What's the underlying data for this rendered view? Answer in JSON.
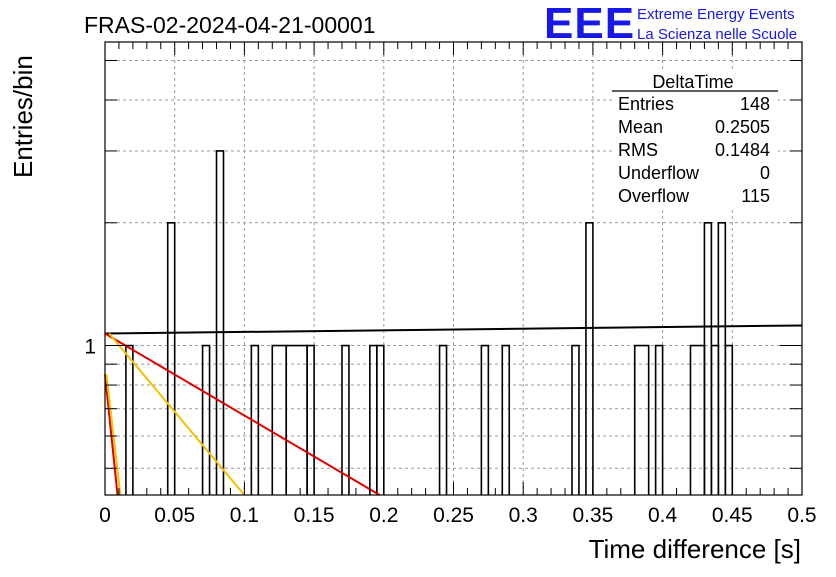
{
  "title": "FRAS-02-2024-04-21-00001",
  "logo": {
    "mark": "EEE",
    "line1": "Extreme Energy Events",
    "line2": "La Scienza nelle Scuole",
    "color": "#1818e8"
  },
  "stats": {
    "name": "DeltaTime",
    "rows": [
      {
        "label": "Entries",
        "value": "148"
      },
      {
        "label": "Mean",
        "value": "0.2505"
      },
      {
        "label": "RMS",
        "value": "0.1484"
      },
      {
        "label": "Underflow",
        "value": "0"
      },
      {
        "label": "Overflow",
        "value": "115"
      }
    ]
  },
  "chart_data": {
    "type": "bar",
    "title": "FRAS-02-2024-04-21-00001",
    "xlabel": "Time difference [s]",
    "ylabel": "Entries/bin",
    "xlim": [
      0,
      0.5
    ],
    "ylim": [
      0.43,
      5.55
    ],
    "ylog": true,
    "grid": true,
    "x_ticks": [
      "0",
      "0.05",
      "0.1",
      "0.15",
      "0.2",
      "0.25",
      "0.3",
      "0.35",
      "0.4",
      "0.45",
      "0.5"
    ],
    "y_ticks": [
      "1"
    ],
    "bin_width": 0.005,
    "bins": [
      {
        "x0": 0.015,
        "x1": 0.02,
        "y": 1
      },
      {
        "x0": 0.045,
        "x1": 0.05,
        "y": 2
      },
      {
        "x0": 0.07,
        "x1": 0.075,
        "y": 1
      },
      {
        "x0": 0.08,
        "x1": 0.085,
        "y": 3
      },
      {
        "x0": 0.105,
        "x1": 0.11,
        "y": 1
      },
      {
        "x0": 0.12,
        "x1": 0.13,
        "y": 1
      },
      {
        "x0": 0.13,
        "x1": 0.145,
        "y": 1
      },
      {
        "x0": 0.145,
        "x1": 0.15,
        "y": 1
      },
      {
        "x0": 0.17,
        "x1": 0.175,
        "y": 1
      },
      {
        "x0": 0.19,
        "x1": 0.195,
        "y": 1
      },
      {
        "x0": 0.195,
        "x1": 0.2,
        "y": 1
      },
      {
        "x0": 0.24,
        "x1": 0.245,
        "y": 1
      },
      {
        "x0": 0.27,
        "x1": 0.275,
        "y": 1
      },
      {
        "x0": 0.285,
        "x1": 0.29,
        "y": 1
      },
      {
        "x0": 0.335,
        "x1": 0.34,
        "y": 1
      },
      {
        "x0": 0.345,
        "x1": 0.35,
        "y": 2
      },
      {
        "x0": 0.38,
        "x1": 0.39,
        "y": 1
      },
      {
        "x0": 0.395,
        "x1": 0.4,
        "y": 1
      },
      {
        "x0": 0.42,
        "x1": 0.43,
        "y": 1
      },
      {
        "x0": 0.43,
        "x1": 0.435,
        "y": 2
      },
      {
        "x0": 0.435,
        "x1": 0.44,
        "y": 1
      },
      {
        "x0": 0.44,
        "x1": 0.445,
        "y": 2
      },
      {
        "x0": 0.445,
        "x1": 0.45,
        "y": 1
      }
    ],
    "curves": [
      {
        "color": "#000000",
        "points": [
          [
            0,
            1.07
          ],
          [
            0.5,
            1.12
          ]
        ]
      },
      {
        "color": "#e00000",
        "points": [
          [
            0,
            1.07
          ],
          [
            0.197,
            0.43
          ]
        ]
      },
      {
        "color": "#f5c000",
        "points": [
          [
            0.003,
            1.07
          ],
          [
            0.1,
            0.43
          ]
        ]
      },
      {
        "color": "#e00000",
        "points": [
          [
            0,
            0.85
          ],
          [
            0.009,
            0.43
          ]
        ]
      },
      {
        "color": "#f5c000",
        "points": [
          [
            0.001,
            0.85
          ],
          [
            0.011,
            0.43
          ]
        ]
      }
    ]
  }
}
